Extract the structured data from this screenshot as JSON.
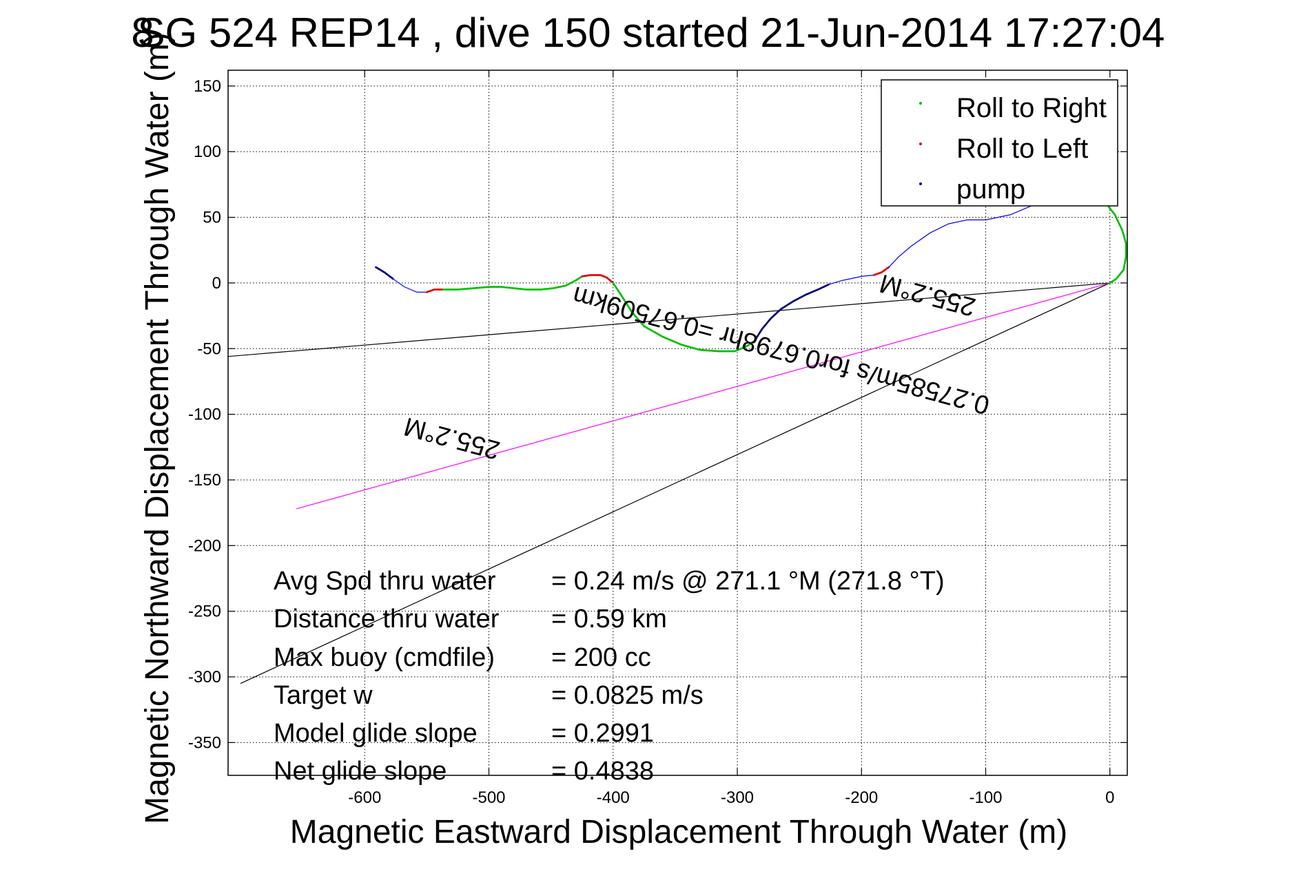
{
  "chart_data": {
    "type": "line",
    "title": "SG 524   REP14  , dive 150 started 21-Jun-2014 17:27:04",
    "title_overlay": "8",
    "xlabel": "Magnetic Eastward Displacement Through Water (m)",
    "ylabel": "Magnetic Northward Displacement Through Water (m)",
    "xlim": [
      -710,
      14
    ],
    "ylim": [
      -375,
      162
    ],
    "xticks": [
      -600,
      -500,
      -400,
      -300,
      -200,
      -100,
      0
    ],
    "yticks": [
      150,
      100,
      50,
      0,
      -50,
      -100,
      -150,
      -200,
      -250,
      -300,
      -350
    ],
    "grid": true,
    "legend_position": "top-right",
    "legend": [
      {
        "name": "Roll to Right",
        "color": "#00c000"
      },
      {
        "name": "Roll to Left",
        "color": "#e00000"
      },
      {
        "name": "pump",
        "color": "#000080"
      }
    ],
    "track": [
      {
        "kind": "pump",
        "color": "#000080",
        "points": [
          [
            -591,
            12
          ],
          [
            -584,
            8
          ],
          [
            -577,
            3
          ]
        ]
      },
      {
        "kind": "glide",
        "color": "#0000ff",
        "points": [
          [
            -577,
            3
          ],
          [
            -568,
            -3
          ],
          [
            -558,
            -7
          ],
          [
            -550,
            -7
          ]
        ]
      },
      {
        "kind": "left",
        "color": "#e00000",
        "points": [
          [
            -550,
            -7
          ],
          [
            -544,
            -5
          ],
          [
            -537,
            -5
          ]
        ]
      },
      {
        "kind": "right",
        "color": "#00c000",
        "points": [
          [
            -537,
            -5
          ],
          [
            -525,
            -5
          ],
          [
            -512,
            -4
          ],
          [
            -500,
            -3
          ],
          [
            -490,
            -3
          ],
          [
            -480,
            -4
          ],
          [
            -470,
            -5
          ],
          [
            -458,
            -5
          ],
          [
            -448,
            -4
          ],
          [
            -438,
            -2
          ],
          [
            -430,
            2
          ],
          [
            -425,
            5
          ]
        ]
      },
      {
        "kind": "left",
        "color": "#e00000",
        "points": [
          [
            -425,
            5
          ],
          [
            -418,
            6
          ],
          [
            -410,
            6
          ],
          [
            -405,
            4
          ],
          [
            -400,
            0
          ]
        ]
      },
      {
        "kind": "right",
        "color": "#00c000",
        "points": [
          [
            -400,
            0
          ],
          [
            -393,
            -10
          ],
          [
            -385,
            -22
          ],
          [
            -375,
            -33
          ],
          [
            -360,
            -41
          ],
          [
            -345,
            -47
          ],
          [
            -330,
            -51
          ],
          [
            -315,
            -52
          ],
          [
            -302,
            -52
          ],
          [
            -292,
            -48
          ],
          [
            -286,
            -44
          ]
        ]
      },
      {
        "kind": "pump",
        "color": "#000080",
        "points": [
          [
            -286,
            -44
          ],
          [
            -280,
            -35
          ],
          [
            -273,
            -27
          ],
          [
            -265,
            -20
          ],
          [
            -255,
            -14
          ],
          [
            -245,
            -9
          ],
          [
            -235,
            -5
          ],
          [
            -226,
            -1
          ]
        ]
      },
      {
        "kind": "glide",
        "color": "#0000ff",
        "points": [
          [
            -226,
            -1
          ],
          [
            -215,
            2
          ],
          [
            -200,
            5
          ],
          [
            -190,
            6
          ]
        ]
      },
      {
        "kind": "left",
        "color": "#e00000",
        "points": [
          [
            -190,
            6
          ],
          [
            -184,
            8
          ],
          [
            -178,
            12
          ]
        ]
      },
      {
        "kind": "glide",
        "color": "#0000ff",
        "points": [
          [
            -178,
            12
          ],
          [
            -170,
            20
          ],
          [
            -160,
            28
          ],
          [
            -145,
            38
          ],
          [
            -130,
            45
          ],
          [
            -115,
            48
          ],
          [
            -100,
            48
          ],
          [
            -80,
            52
          ],
          [
            -65,
            58
          ],
          [
            -55,
            62
          ]
        ]
      },
      {
        "kind": "right",
        "color": "#00c000",
        "points": [
          [
            -1,
            58
          ],
          [
            4,
            52
          ],
          [
            10,
            40
          ],
          [
            13,
            30
          ],
          [
            13,
            20
          ],
          [
            11,
            10
          ],
          [
            5,
            3
          ],
          [
            0,
            0
          ]
        ]
      }
    ],
    "reference_lines": [
      {
        "name": "heading-line-upper",
        "color": "#000000",
        "points": [
          [
            0,
            0
          ],
          [
            -710,
            -56
          ]
        ]
      },
      {
        "name": "heading-line-lower",
        "color": "#000000",
        "points": [
          [
            0,
            0
          ],
          [
            -700,
            -305
          ]
        ]
      },
      {
        "name": "depth-averaged-current",
        "color": "#ff00ff",
        "points": [
          [
            0,
            0
          ],
          [
            -655,
            -172
          ]
        ]
      }
    ],
    "line_annotations": [
      {
        "text": "255.2°M",
        "x": -145,
        "y": -3,
        "rotate": 195
      },
      {
        "text": "0.27585m/s for0.6798hr =0.67509km",
        "x": -263,
        "y": -45,
        "rotate": 195
      },
      {
        "text": "255.2°M",
        "x": -528,
        "y": -112,
        "rotate": 195
      }
    ],
    "stats": [
      {
        "label": "Avg Spd thru water",
        "value": "=  0.24 m/s @ 271.1 °M (271.8 °T)"
      },
      {
        "label": "Distance thru water",
        "value": "=  0.59 km"
      },
      {
        "label": "Max buoy (cmdfile)",
        "value": "= 200 cc"
      },
      {
        "label": "Target w",
        "value": "= 0.0825 m/s"
      },
      {
        "label": "Model glide slope",
        "value": "= 0.2991"
      },
      {
        "label": "Net glide slope",
        "value": "= 0.4838"
      }
    ]
  }
}
